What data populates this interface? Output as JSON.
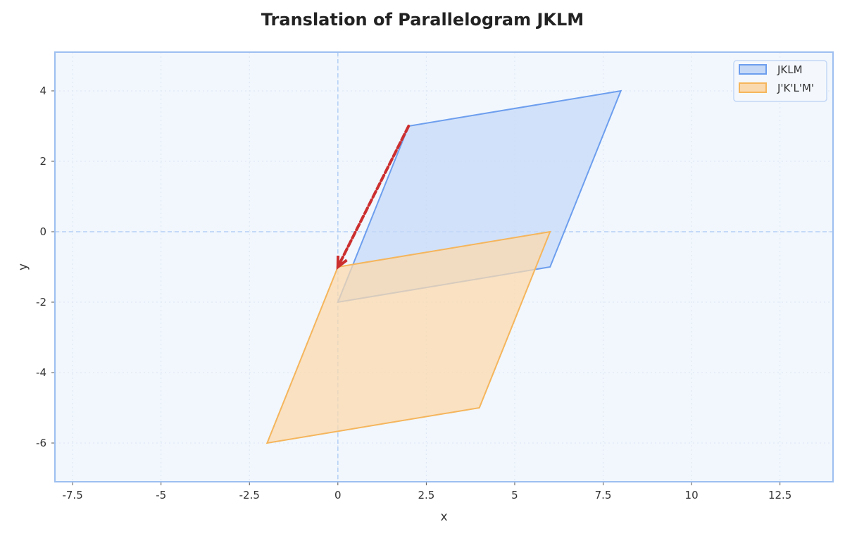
{
  "chart_data": {
    "type": "area",
    "title": "Translation of Parallelogram JKLM",
    "xlabel": "x",
    "ylabel": "y",
    "xlim": [
      -8,
      14
    ],
    "ylim": [
      -7.1,
      5.1
    ],
    "xticks": [
      -7.5,
      -5,
      -2.5,
      0,
      2.5,
      5,
      7.5,
      10,
      12.5
    ],
    "xtick_labels": [
      "-7.5",
      "-5",
      "-2.5",
      "0",
      "2.5",
      "5",
      "7.5",
      "10",
      "12.5"
    ],
    "yticks": [
      -6,
      -4,
      -2,
      0,
      2,
      4
    ],
    "ytick_labels": [
      "-6",
      "-4",
      "-2",
      "0",
      "2",
      "4"
    ],
    "grid": true,
    "legend_position": "top-right",
    "series": [
      {
        "name": "JKLM",
        "points": [
          [
            0,
            -2
          ],
          [
            2,
            3
          ],
          [
            8,
            4
          ],
          [
            6,
            -1
          ]
        ],
        "stroke": "#6d9eee",
        "fill": "#c5d9f7"
      },
      {
        "name": "J'K'L'M'",
        "points": [
          [
            -2,
            -6
          ],
          [
            0,
            -1
          ],
          [
            6,
            0
          ],
          [
            4,
            -5
          ]
        ],
        "stroke": "#f5b55c",
        "fill": "#fbd9ae"
      }
    ],
    "arrow": {
      "from": [
        2,
        3
      ],
      "to": [
        0,
        -1
      ],
      "color": "#cc2f2f",
      "style": "dashed"
    }
  },
  "colors": {
    "background": "#f1f7fd",
    "frame": "#9dbff0",
    "axis_lines": "#b5cff5"
  }
}
